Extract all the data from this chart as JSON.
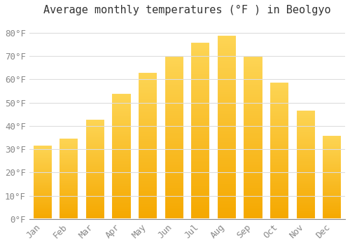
{
  "title": "Average monthly temperatures (°F ) in Beolgyo",
  "months": [
    "Jan",
    "Feb",
    "Mar",
    "Apr",
    "May",
    "Jun",
    "Jul",
    "Aug",
    "Sep",
    "Oct",
    "Nov",
    "Dec"
  ],
  "values": [
    32,
    35,
    43,
    54,
    63,
    70,
    76,
    79,
    70,
    59,
    47,
    36
  ],
  "bar_color_top": "#FDD555",
  "bar_color_bottom": "#F5A800",
  "bar_edge_color": "#E8E8E8",
  "background_color": "#FFFFFF",
  "grid_color": "#DDDDDD",
  "yticks": [
    0,
    10,
    20,
    30,
    40,
    50,
    60,
    70,
    80
  ],
  "ylim": [
    0,
    85
  ],
  "title_fontsize": 11,
  "tick_fontsize": 9,
  "tick_color": "#888888",
  "title_color": "#333333"
}
